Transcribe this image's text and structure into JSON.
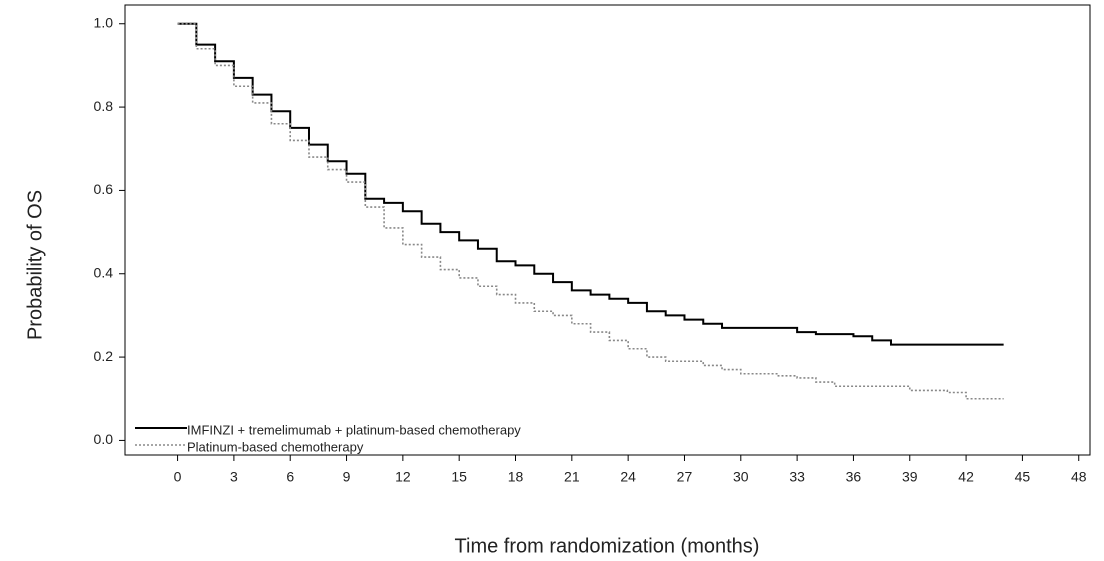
{
  "chart_data": {
    "type": "km-step",
    "x_label": "Time from randomization (months)",
    "y_label": "Probability of OS",
    "xlim": [
      -2.8,
      48.6
    ],
    "ylim": [
      -0.035,
      1.045
    ],
    "xticks": [
      0,
      3,
      6,
      9,
      12,
      15,
      18,
      21,
      24,
      27,
      30,
      33,
      36,
      39,
      42,
      45,
      48
    ],
    "yticks": [
      {
        "value": 0,
        "label": "0.0"
      },
      0.2,
      0.4,
      0.6,
      0.8,
      {
        "value": 1,
        "label": "1.0"
      }
    ],
    "legend": "lower left",
    "x": [
      0,
      1,
      2,
      3,
      4,
      5,
      6,
      7,
      8,
      9,
      10,
      11,
      12,
      13,
      14,
      15,
      16,
      17,
      18,
      19,
      20,
      21,
      22,
      23,
      24,
      25,
      26,
      27,
      28,
      29,
      30,
      31,
      32,
      33,
      34,
      35,
      36,
      37,
      38,
      39,
      40,
      41,
      42,
      43,
      44
    ],
    "series": [
      {
        "name": "IMFINZI + tremelimumab + platinum-based chemotherapy",
        "color": "#000000",
        "dash": "none",
        "values": [
          1.0,
          0.95,
          0.91,
          0.87,
          0.83,
          0.79,
          0.75,
          0.71,
          0.67,
          0.64,
          0.58,
          0.57,
          0.55,
          0.52,
          0.5,
          0.48,
          0.46,
          0.43,
          0.42,
          0.4,
          0.38,
          0.36,
          0.35,
          0.34,
          0.33,
          0.31,
          0.3,
          0.29,
          0.28,
          0.27,
          0.27,
          0.27,
          0.27,
          0.26,
          0.255,
          0.255,
          0.25,
          0.24,
          0.23,
          0.23,
          0.23,
          0.23,
          0.23,
          0.23,
          0.23
        ]
      },
      {
        "name": "Platinum-based chemotherapy",
        "color": "#888888",
        "dash": "2,2",
        "values": [
          1.0,
          0.94,
          0.9,
          0.85,
          0.81,
          0.76,
          0.72,
          0.68,
          0.65,
          0.62,
          0.56,
          0.51,
          0.47,
          0.44,
          0.41,
          0.39,
          0.37,
          0.35,
          0.33,
          0.31,
          0.3,
          0.28,
          0.26,
          0.24,
          0.22,
          0.2,
          0.19,
          0.19,
          0.18,
          0.17,
          0.16,
          0.16,
          0.155,
          0.15,
          0.14,
          0.13,
          0.13,
          0.13,
          0.13,
          0.12,
          0.12,
          0.115,
          0.1,
          0.1,
          0.1
        ]
      }
    ]
  }
}
